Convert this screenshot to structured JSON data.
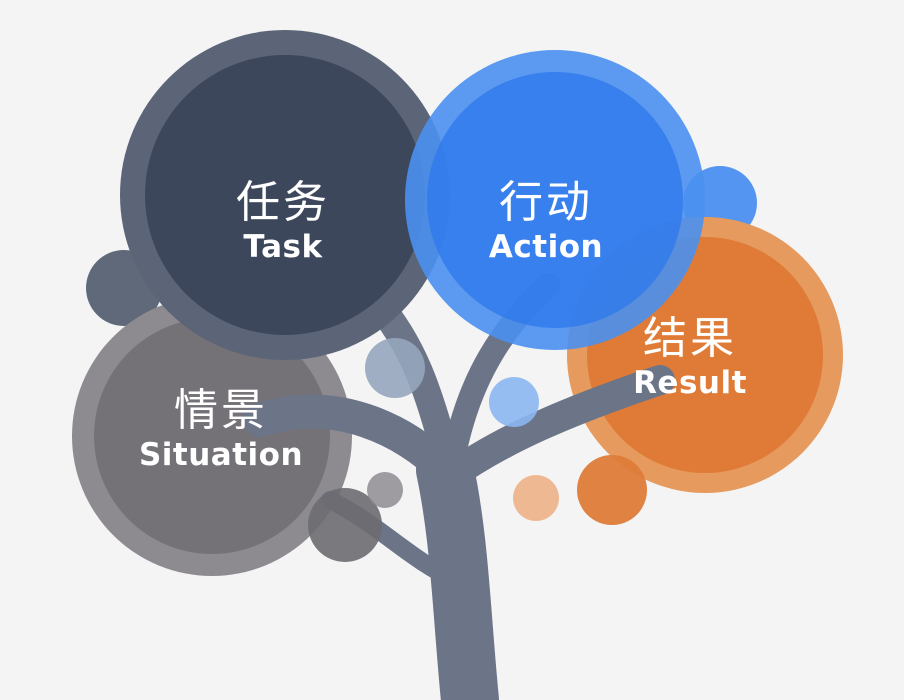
{
  "diagram": {
    "task": {
      "zh": "任务",
      "en": "Task"
    },
    "action": {
      "zh": "行动",
      "en": "Action"
    },
    "result": {
      "zh": "结果",
      "en": "Result"
    },
    "situation": {
      "zh": "情景",
      "en": "Situation"
    }
  },
  "colors": {
    "background": "#f4f4f5",
    "task": "#3f4a5e",
    "action": "#3e86ee",
    "result": "#e0803e",
    "situation": "#7d7b80",
    "trunk": "#6c7488"
  }
}
